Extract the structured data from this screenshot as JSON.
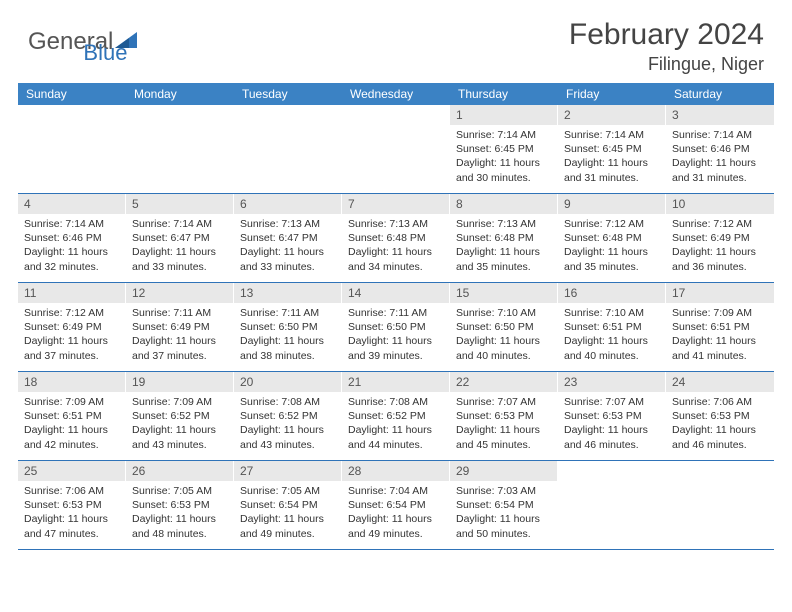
{
  "logo": {
    "general": "General",
    "blue": "Blue"
  },
  "title": "February 2024",
  "location": "Filingue, Niger",
  "header_bg": "#3b82c4",
  "daynum_bg": "#e8e8e8",
  "border_color": "#2f73b8",
  "weekdays": [
    "Sunday",
    "Monday",
    "Tuesday",
    "Wednesday",
    "Thursday",
    "Friday",
    "Saturday"
  ],
  "weeks": [
    [
      null,
      null,
      null,
      null,
      {
        "n": "1",
        "sr": "7:14 AM",
        "ss": "6:45 PM",
        "dl": "11 hours and 30 minutes."
      },
      {
        "n": "2",
        "sr": "7:14 AM",
        "ss": "6:45 PM",
        "dl": "11 hours and 31 minutes."
      },
      {
        "n": "3",
        "sr": "7:14 AM",
        "ss": "6:46 PM",
        "dl": "11 hours and 31 minutes."
      }
    ],
    [
      {
        "n": "4",
        "sr": "7:14 AM",
        "ss": "6:46 PM",
        "dl": "11 hours and 32 minutes."
      },
      {
        "n": "5",
        "sr": "7:14 AM",
        "ss": "6:47 PM",
        "dl": "11 hours and 33 minutes."
      },
      {
        "n": "6",
        "sr": "7:13 AM",
        "ss": "6:47 PM",
        "dl": "11 hours and 33 minutes."
      },
      {
        "n": "7",
        "sr": "7:13 AM",
        "ss": "6:48 PM",
        "dl": "11 hours and 34 minutes."
      },
      {
        "n": "8",
        "sr": "7:13 AM",
        "ss": "6:48 PM",
        "dl": "11 hours and 35 minutes."
      },
      {
        "n": "9",
        "sr": "7:12 AM",
        "ss": "6:48 PM",
        "dl": "11 hours and 35 minutes."
      },
      {
        "n": "10",
        "sr": "7:12 AM",
        "ss": "6:49 PM",
        "dl": "11 hours and 36 minutes."
      }
    ],
    [
      {
        "n": "11",
        "sr": "7:12 AM",
        "ss": "6:49 PM",
        "dl": "11 hours and 37 minutes."
      },
      {
        "n": "12",
        "sr": "7:11 AM",
        "ss": "6:49 PM",
        "dl": "11 hours and 37 minutes."
      },
      {
        "n": "13",
        "sr": "7:11 AM",
        "ss": "6:50 PM",
        "dl": "11 hours and 38 minutes."
      },
      {
        "n": "14",
        "sr": "7:11 AM",
        "ss": "6:50 PM",
        "dl": "11 hours and 39 minutes."
      },
      {
        "n": "15",
        "sr": "7:10 AM",
        "ss": "6:50 PM",
        "dl": "11 hours and 40 minutes."
      },
      {
        "n": "16",
        "sr": "7:10 AM",
        "ss": "6:51 PM",
        "dl": "11 hours and 40 minutes."
      },
      {
        "n": "17",
        "sr": "7:09 AM",
        "ss": "6:51 PM",
        "dl": "11 hours and 41 minutes."
      }
    ],
    [
      {
        "n": "18",
        "sr": "7:09 AM",
        "ss": "6:51 PM",
        "dl": "11 hours and 42 minutes."
      },
      {
        "n": "19",
        "sr": "7:09 AM",
        "ss": "6:52 PM",
        "dl": "11 hours and 43 minutes."
      },
      {
        "n": "20",
        "sr": "7:08 AM",
        "ss": "6:52 PM",
        "dl": "11 hours and 43 minutes."
      },
      {
        "n": "21",
        "sr": "7:08 AM",
        "ss": "6:52 PM",
        "dl": "11 hours and 44 minutes."
      },
      {
        "n": "22",
        "sr": "7:07 AM",
        "ss": "6:53 PM",
        "dl": "11 hours and 45 minutes."
      },
      {
        "n": "23",
        "sr": "7:07 AM",
        "ss": "6:53 PM",
        "dl": "11 hours and 46 minutes."
      },
      {
        "n": "24",
        "sr": "7:06 AM",
        "ss": "6:53 PM",
        "dl": "11 hours and 46 minutes."
      }
    ],
    [
      {
        "n": "25",
        "sr": "7:06 AM",
        "ss": "6:53 PM",
        "dl": "11 hours and 47 minutes."
      },
      {
        "n": "26",
        "sr": "7:05 AM",
        "ss": "6:53 PM",
        "dl": "11 hours and 48 minutes."
      },
      {
        "n": "27",
        "sr": "7:05 AM",
        "ss": "6:54 PM",
        "dl": "11 hours and 49 minutes."
      },
      {
        "n": "28",
        "sr": "7:04 AM",
        "ss": "6:54 PM",
        "dl": "11 hours and 49 minutes."
      },
      {
        "n": "29",
        "sr": "7:03 AM",
        "ss": "6:54 PM",
        "dl": "11 hours and 50 minutes."
      },
      null,
      null
    ]
  ],
  "labels": {
    "sunrise": "Sunrise:",
    "sunset": "Sunset:",
    "daylight": "Daylight:"
  }
}
